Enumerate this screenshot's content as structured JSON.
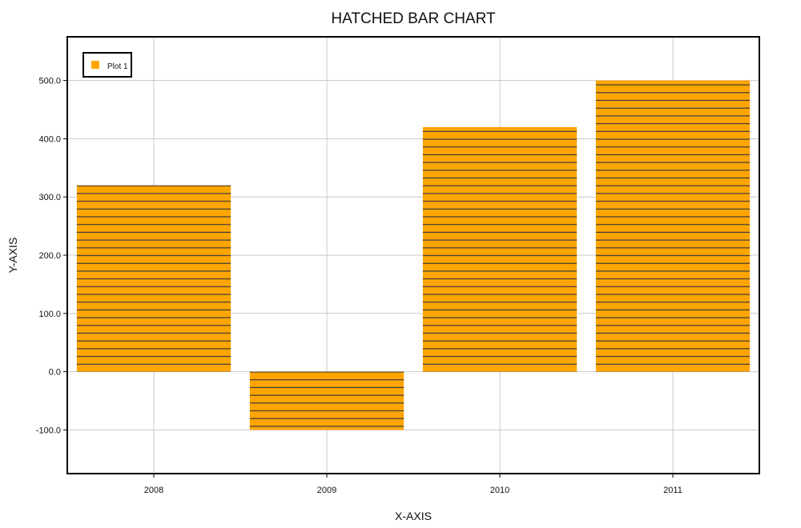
{
  "chart_data": {
    "type": "bar",
    "title": "HATCHED BAR CHART",
    "xlabel": "X-AXIS",
    "ylabel": "Y-AXIS",
    "categories": [
      "2008",
      "2009",
      "2010",
      "2011"
    ],
    "series": [
      {
        "name": "Plot 1",
        "values": [
          320,
          -100,
          420,
          500
        ]
      }
    ],
    "ylim": [
      -175,
      575
    ],
    "yticks": [
      "-100.0",
      "0.0",
      "100.0",
      "200.0",
      "300.0",
      "400.0",
      "500.0"
    ],
    "grid": true,
    "legend": "top-left",
    "hatch": "horizontal",
    "colors": {
      "bar": "#FFA500",
      "hatch": "#3a3a3a",
      "grid": "#c8c8c8",
      "frame": "#000000"
    }
  }
}
